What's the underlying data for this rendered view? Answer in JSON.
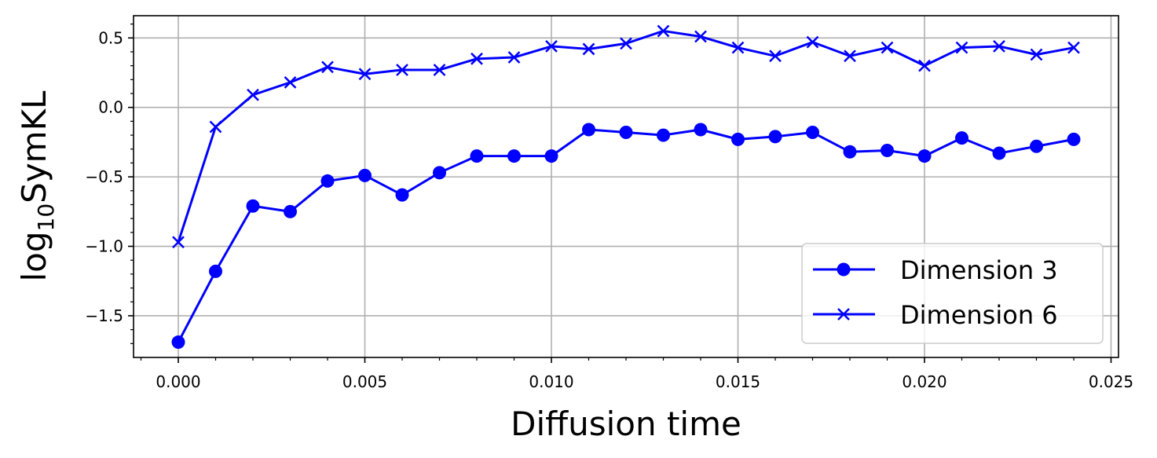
{
  "chart_data": {
    "type": "line",
    "title": "",
    "xlabel": "Diffusion time",
    "ylabel": {
      "base": "log",
      "subscript": "10",
      "rest": "SymKL"
    },
    "xlim": [
      -0.0012,
      0.0252
    ],
    "ylim": [
      -1.8,
      0.66
    ],
    "x_ticks": [
      0.0,
      0.005,
      0.01,
      0.015,
      0.02,
      0.025
    ],
    "x_tick_labels": [
      "0.000",
      "0.005",
      "0.010",
      "0.015",
      "0.020",
      "0.025"
    ],
    "y_ticks": [
      -1.5,
      -1.0,
      -0.5,
      0.0,
      0.5
    ],
    "y_tick_labels": [
      "−1.5",
      "−1.0",
      "−0.5",
      "0.0",
      "0.5"
    ],
    "grid": true,
    "legend_position": "lower-right",
    "x": [
      0.0,
      0.001,
      0.002,
      0.003,
      0.004,
      0.005,
      0.006,
      0.007,
      0.008,
      0.009,
      0.01,
      0.011,
      0.012,
      0.013,
      0.014,
      0.015,
      0.016,
      0.017,
      0.018,
      0.019,
      0.02,
      0.021,
      0.022,
      0.023,
      0.024
    ],
    "series": [
      {
        "name": "Dimension 3",
        "marker": "circle",
        "color": "#0000ff",
        "values": [
          -1.69,
          -1.18,
          -0.71,
          -0.75,
          -0.53,
          -0.49,
          -0.63,
          -0.47,
          -0.35,
          -0.35,
          -0.35,
          -0.16,
          -0.18,
          -0.2,
          -0.16,
          -0.23,
          -0.21,
          -0.18,
          -0.32,
          -0.31,
          -0.35,
          -0.22,
          -0.33,
          -0.28,
          -0.23
        ]
      },
      {
        "name": "Dimension 6",
        "marker": "x",
        "color": "#0000ff",
        "values": [
          -0.97,
          -0.14,
          0.09,
          0.18,
          0.29,
          0.24,
          0.27,
          0.27,
          0.35,
          0.36,
          0.44,
          0.42,
          0.46,
          0.55,
          0.51,
          0.43,
          0.37,
          0.47,
          0.37,
          0.43,
          0.3,
          0.43,
          0.44,
          0.38,
          0.43
        ]
      }
    ]
  }
}
